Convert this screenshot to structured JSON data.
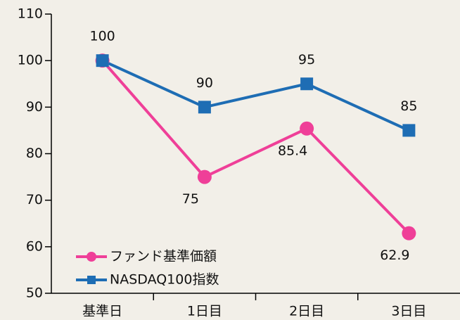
{
  "chart_data": {
    "type": "line",
    "categories": [
      "基準日",
      "1日目",
      "2日目",
      "3日目"
    ],
    "series": [
      {
        "name": "ファンド基準価額",
        "color": "#ef3f98",
        "marker": "circle",
        "label_position": "below",
        "values": [
          100,
          75,
          85.4,
          62.9
        ],
        "value_labels": [
          null,
          "75",
          "85.4",
          "62.9"
        ]
      },
      {
        "name": "NASDAQ100指数",
        "color": "#1e6db4",
        "marker": "square",
        "label_position": "above",
        "values": [
          100,
          90,
          95,
          85
        ],
        "value_labels": [
          "100",
          "90",
          "95",
          "85"
        ]
      }
    ],
    "ylim": [
      50,
      110
    ],
    "yticks": [
      50,
      60,
      70,
      80,
      90,
      100,
      110
    ],
    "legend": "lower left",
    "background": "#f2efe8"
  }
}
